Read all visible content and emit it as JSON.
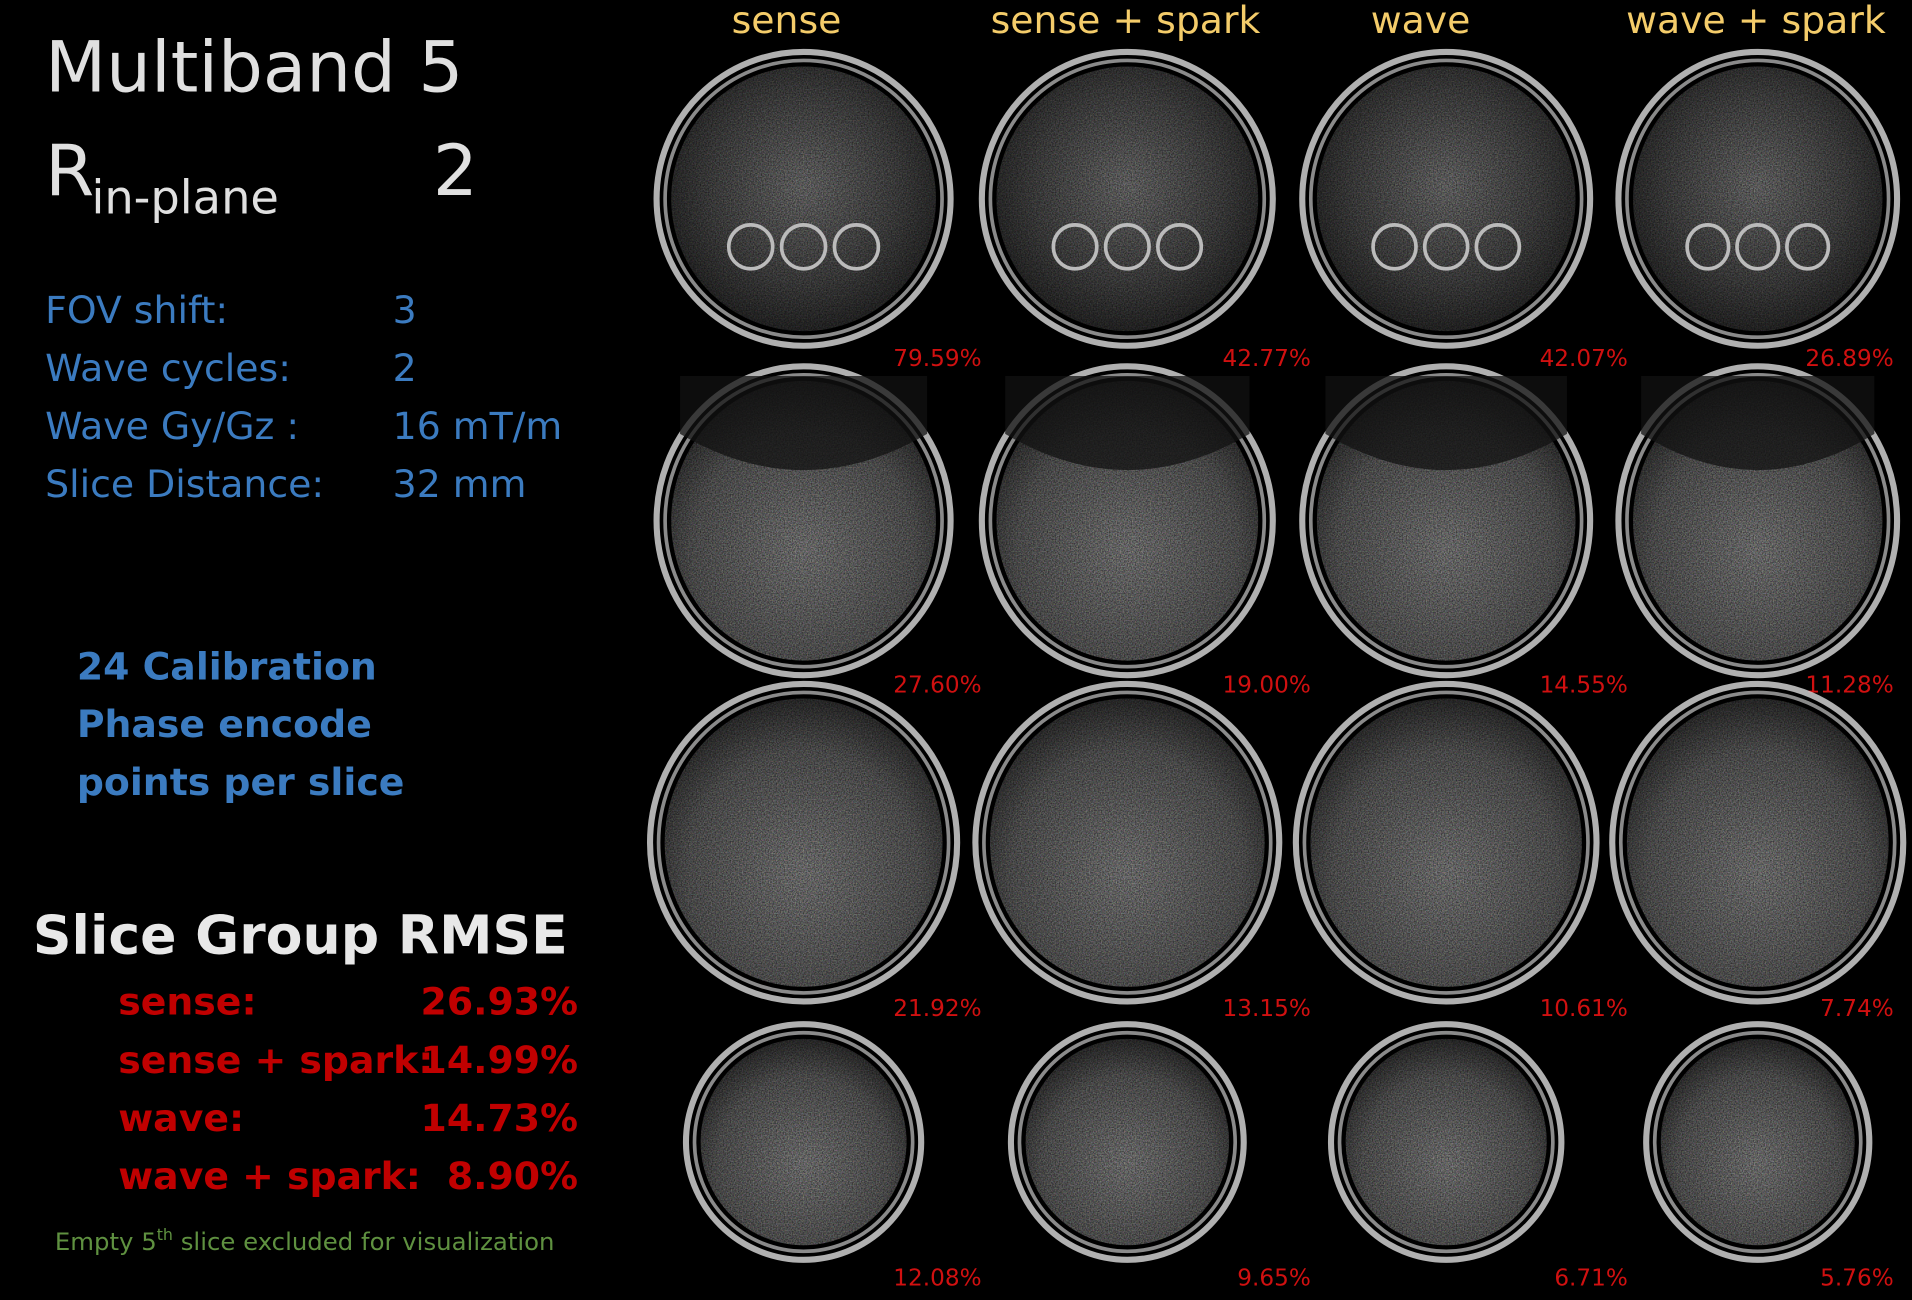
{
  "header": {
    "title": "Multiband 5",
    "r_symbol": "R",
    "r_subscript": "in-plane",
    "r_value": "2"
  },
  "parameters": [
    {
      "label": "FOV shift:",
      "value": "3"
    },
    {
      "label": "Wave cycles:",
      "value": "2"
    },
    {
      "label": "Wave Gy/Gz :",
      "value": "16 mT/m"
    },
    {
      "label": "Slice Distance:",
      "value": "32 mm"
    }
  ],
  "calibration": [
    "24 Calibration",
    "Phase encode",
    "points per slice"
  ],
  "rmse": {
    "title": "Slice Group RMSE",
    "rows": [
      {
        "label": "sense:",
        "value": "26.93%"
      },
      {
        "label": "sense + spark:",
        "value": "14.99%"
      },
      {
        "label": "wave:",
        "value": "14.73%"
      },
      {
        "label": "wave + spark:",
        "value": "8.90%"
      }
    ]
  },
  "footnote": {
    "before": "Empty 5",
    "sup": "th",
    "after": " slice excluded for visualization"
  },
  "grid": {
    "columns": [
      "sense",
      "sense + spark",
      "wave",
      "wave + spark"
    ],
    "rows": [
      [
        "79.59%",
        "42.77%",
        "42.07%",
        "26.89%"
      ],
      [
        "27.60%",
        "19.00%",
        "14.55%",
        "11.28%"
      ],
      [
        "21.92%",
        "13.15%",
        "10.61%",
        "7.74%"
      ],
      [
        "12.08%",
        "9.65%",
        "6.71%",
        "5.76%"
      ]
    ]
  }
}
